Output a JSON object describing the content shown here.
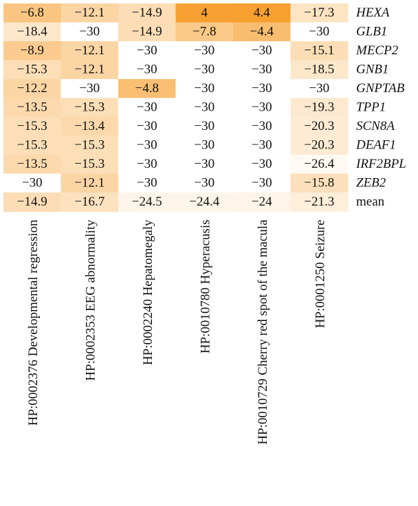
{
  "chart_data": {
    "type": "heatmap",
    "columns": [
      "HP:0002376 Developmental regression",
      "HP:0002353 EEG abnormality",
      "HP:0002240 Hepatomegaly",
      "HP:0010780 Hyperacusis",
      "HP:0010729 Cherry red spot of the macula",
      "HP:0001250 Seizure"
    ],
    "rows": [
      {
        "label": "HEXA",
        "values": [
          -6.8,
          -12.1,
          -14.9,
          4,
          4.4,
          -17.3
        ],
        "display": [
          "−6.8",
          "−12.1",
          "−14.9",
          "4",
          "4.4",
          "−17.3"
        ]
      },
      {
        "label": "GLB1",
        "values": [
          -18.4,
          -30,
          -14.9,
          -7.8,
          -4.4,
          -30
        ],
        "display": [
          "−18.4",
          "−30",
          "−14.9",
          "−7.8",
          "−4.4",
          "−30"
        ]
      },
      {
        "label": "MECP2",
        "values": [
          -8.9,
          -12.1,
          -30,
          -30,
          -30,
          -15.1
        ],
        "display": [
          "−8.9",
          "−12.1",
          "−30",
          "−30",
          "−30",
          "−15.1"
        ]
      },
      {
        "label": "GNB1",
        "values": [
          -15.3,
          -12.1,
          -30,
          -30,
          -30,
          -18.5
        ],
        "display": [
          "−15.3",
          "−12.1",
          "−30",
          "−30",
          "−30",
          "−18.5"
        ]
      },
      {
        "label": "GNPTAB",
        "values": [
          -12.2,
          -30,
          -4.8,
          -30,
          -30,
          -30
        ],
        "display": [
          "−12.2",
          "−30",
          "−4.8",
          "−30",
          "−30",
          "−30"
        ]
      },
      {
        "label": "TPP1",
        "values": [
          -13.5,
          -15.3,
          -30,
          -30,
          -30,
          -19.3
        ],
        "display": [
          "−13.5",
          "−15.3",
          "−30",
          "−30",
          "−30",
          "−19.3"
        ]
      },
      {
        "label": "SCN8A",
        "values": [
          -15.3,
          -13.4,
          -30,
          -30,
          -30,
          -20.3
        ],
        "display": [
          "−15.3",
          "−13.4",
          "−30",
          "−30",
          "−30",
          "−20.3"
        ]
      },
      {
        "label": "DEAF1",
        "values": [
          -15.3,
          -15.3,
          -30,
          -30,
          -30,
          -20.3
        ],
        "display": [
          "−15.3",
          "−15.3",
          "−30",
          "−30",
          "−30",
          "−20.3"
        ]
      },
      {
        "label": "IRF2BPL",
        "values": [
          -13.5,
          -15.3,
          -30,
          -30,
          -30,
          -26.4
        ],
        "display": [
          "−13.5",
          "−15.3",
          "−30",
          "−30",
          "−30",
          "−26.4"
        ]
      },
      {
        "label": "ZEB2",
        "values": [
          -30,
          -12.1,
          -30,
          -30,
          -30,
          -15.8
        ],
        "display": [
          "−30",
          "−12.1",
          "−30",
          "−30",
          "−30",
          "−15.8"
        ]
      },
      {
        "label": "mean",
        "values": [
          -14.9,
          -16.7,
          -24.5,
          -24.4,
          -24,
          -21.3
        ],
        "display": [
          "−14.9",
          "−16.7",
          "−24.5",
          "−24.4",
          "−24",
          "−21.3"
        ]
      }
    ],
    "color_scale": {
      "min": -30,
      "max": 4.4,
      "low_color": "#ffffff",
      "high_color": "#f7a030"
    }
  }
}
